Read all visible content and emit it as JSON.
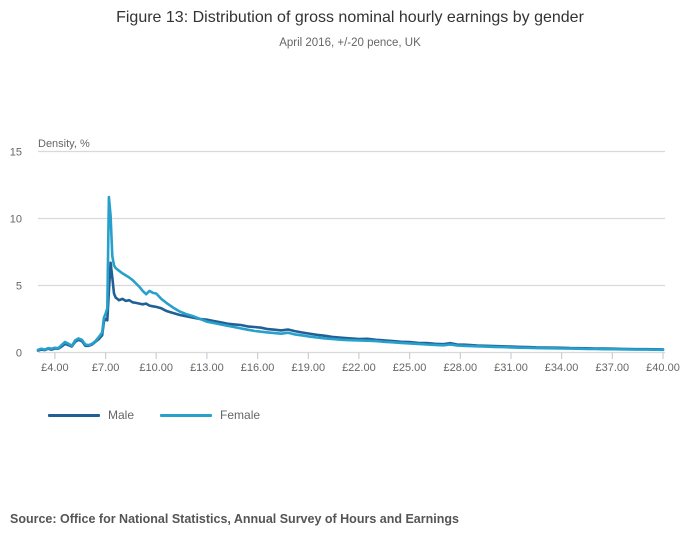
{
  "page": {
    "title": "Figure 13: Distribution of gross nominal hourly earnings by gender",
    "subtitle": "April 2016, +/-20 pence, UK",
    "source": "Source: Office for National Statistics, Annual Survey of Hours and Earnings"
  },
  "legend": {
    "items": [
      {
        "label": "Male",
        "color": "#206095"
      },
      {
        "label": "Female",
        "color": "#27A0CC"
      }
    ],
    "position": "bottom-left"
  },
  "colors": {
    "grid": "#d9d9d9",
    "tick": "#c3d0dc",
    "axis_text": "#666666",
    "title_text": "#333333",
    "male": "#206095",
    "female": "#27A0CC"
  },
  "chart_data": {
    "type": "line",
    "title": "Figure 13: Distribution of gross nominal hourly earnings by gender",
    "subtitle": "April 2016, +/-20 pence, UK",
    "xlabel": "",
    "ylabel": "Density, %",
    "xlim": [
      3,
      40
    ],
    "ylim": [
      0,
      15
    ],
    "yticks": [
      0,
      5,
      10,
      15
    ],
    "xticks": [
      4,
      7,
      10,
      13,
      16,
      19,
      22,
      25,
      28,
      31,
      34,
      37,
      40
    ],
    "xtick_labels": [
      "£4.00",
      "£7.00",
      "£10.00",
      "£13.00",
      "£16.00",
      "£19.00",
      "£22.00",
      "£25.00",
      "£28.00",
      "£31.00",
      "£34.00",
      "£37.00",
      "£40.00"
    ],
    "grid": "horizontal",
    "legend_position": "bottom-left",
    "x": [
      3,
      3.2,
      3.4,
      3.6,
      3.8,
      4,
      4.2,
      4.4,
      4.6,
      4.8,
      5,
      5.2,
      5.4,
      5.6,
      5.8,
      6,
      6.2,
      6.4,
      6.6,
      6.8,
      6.9,
      7,
      7.1,
      7.2,
      7.3,
      7.4,
      7.5,
      7.6,
      7.8,
      8,
      8.2,
      8.4,
      8.6,
      8.8,
      9,
      9.2,
      9.4,
      9.6,
      9.8,
      10,
      10.3,
      10.6,
      11,
      11.4,
      11.8,
      12.2,
      12.6,
      13,
      13.4,
      13.8,
      14.2,
      14.6,
      15,
      15.4,
      15.8,
      16.2,
      16.6,
      17,
      17.4,
      17.8,
      18.2,
      18.6,
      19,
      19.5,
      20,
      20.5,
      21,
      21.5,
      22,
      22.5,
      23,
      23.5,
      24,
      24.5,
      25,
      25.5,
      26,
      26.5,
      27,
      27.4,
      27.8,
      28.2,
      28.6,
      29,
      29.5,
      30,
      30.5,
      31,
      31.5,
      32,
      32.5,
      33,
      33.5,
      34,
      34.5,
      35,
      35.5,
      36,
      36.5,
      37,
      37.5,
      38,
      38.5,
      39,
      39.5,
      40
    ],
    "series": [
      {
        "name": "Male",
        "color": "#206095",
        "values": [
          0.15,
          0.22,
          0.18,
          0.28,
          0.22,
          0.3,
          0.28,
          0.45,
          0.65,
          0.55,
          0.45,
          0.8,
          0.95,
          0.85,
          0.5,
          0.5,
          0.6,
          0.8,
          1.0,
          1.3,
          2.3,
          2.5,
          2.4,
          4.6,
          6.7,
          5.6,
          4.4,
          4.1,
          3.9,
          4.0,
          3.85,
          3.9,
          3.75,
          3.7,
          3.65,
          3.6,
          3.65,
          3.5,
          3.45,
          3.4,
          3.3,
          3.1,
          2.95,
          2.8,
          2.7,
          2.6,
          2.5,
          2.45,
          2.35,
          2.25,
          2.15,
          2.1,
          2.05,
          1.95,
          1.9,
          1.85,
          1.75,
          1.7,
          1.65,
          1.72,
          1.6,
          1.5,
          1.42,
          1.32,
          1.25,
          1.15,
          1.1,
          1.05,
          1.0,
          1.02,
          0.95,
          0.9,
          0.85,
          0.8,
          0.78,
          0.72,
          0.7,
          0.65,
          0.62,
          0.7,
          0.6,
          0.58,
          0.55,
          0.52,
          0.5,
          0.48,
          0.46,
          0.44,
          0.42,
          0.4,
          0.38,
          0.37,
          0.36,
          0.35,
          0.33,
          0.32,
          0.31,
          0.3,
          0.29,
          0.28,
          0.27,
          0.26,
          0.25,
          0.25,
          0.24,
          0.23
        ]
      },
      {
        "name": "Female",
        "color": "#27A0CC",
        "values": [
          0.2,
          0.28,
          0.22,
          0.32,
          0.28,
          0.35,
          0.32,
          0.55,
          0.78,
          0.65,
          0.5,
          0.9,
          1.05,
          0.95,
          0.6,
          0.55,
          0.65,
          0.85,
          1.15,
          1.5,
          2.6,
          2.9,
          3.3,
          11.6,
          10.2,
          7.2,
          6.5,
          6.3,
          6.1,
          5.9,
          5.75,
          5.6,
          5.4,
          5.15,
          4.9,
          4.6,
          4.35,
          4.6,
          4.45,
          4.4,
          4.0,
          3.7,
          3.35,
          3.05,
          2.85,
          2.7,
          2.5,
          2.3,
          2.2,
          2.1,
          2.0,
          1.9,
          1.8,
          1.7,
          1.62,
          1.55,
          1.5,
          1.45,
          1.4,
          1.48,
          1.35,
          1.28,
          1.2,
          1.12,
          1.05,
          1.0,
          0.95,
          0.92,
          0.9,
          0.88,
          0.85,
          0.8,
          0.76,
          0.72,
          0.68,
          0.64,
          0.6,
          0.57,
          0.54,
          0.6,
          0.52,
          0.5,
          0.48,
          0.46,
          0.44,
          0.42,
          0.4,
          0.38,
          0.36,
          0.35,
          0.33,
          0.32,
          0.31,
          0.3,
          0.29,
          0.28,
          0.27,
          0.26,
          0.25,
          0.25,
          0.24,
          0.23,
          0.22,
          0.22,
          0.21,
          0.2
        ]
      }
    ]
  }
}
